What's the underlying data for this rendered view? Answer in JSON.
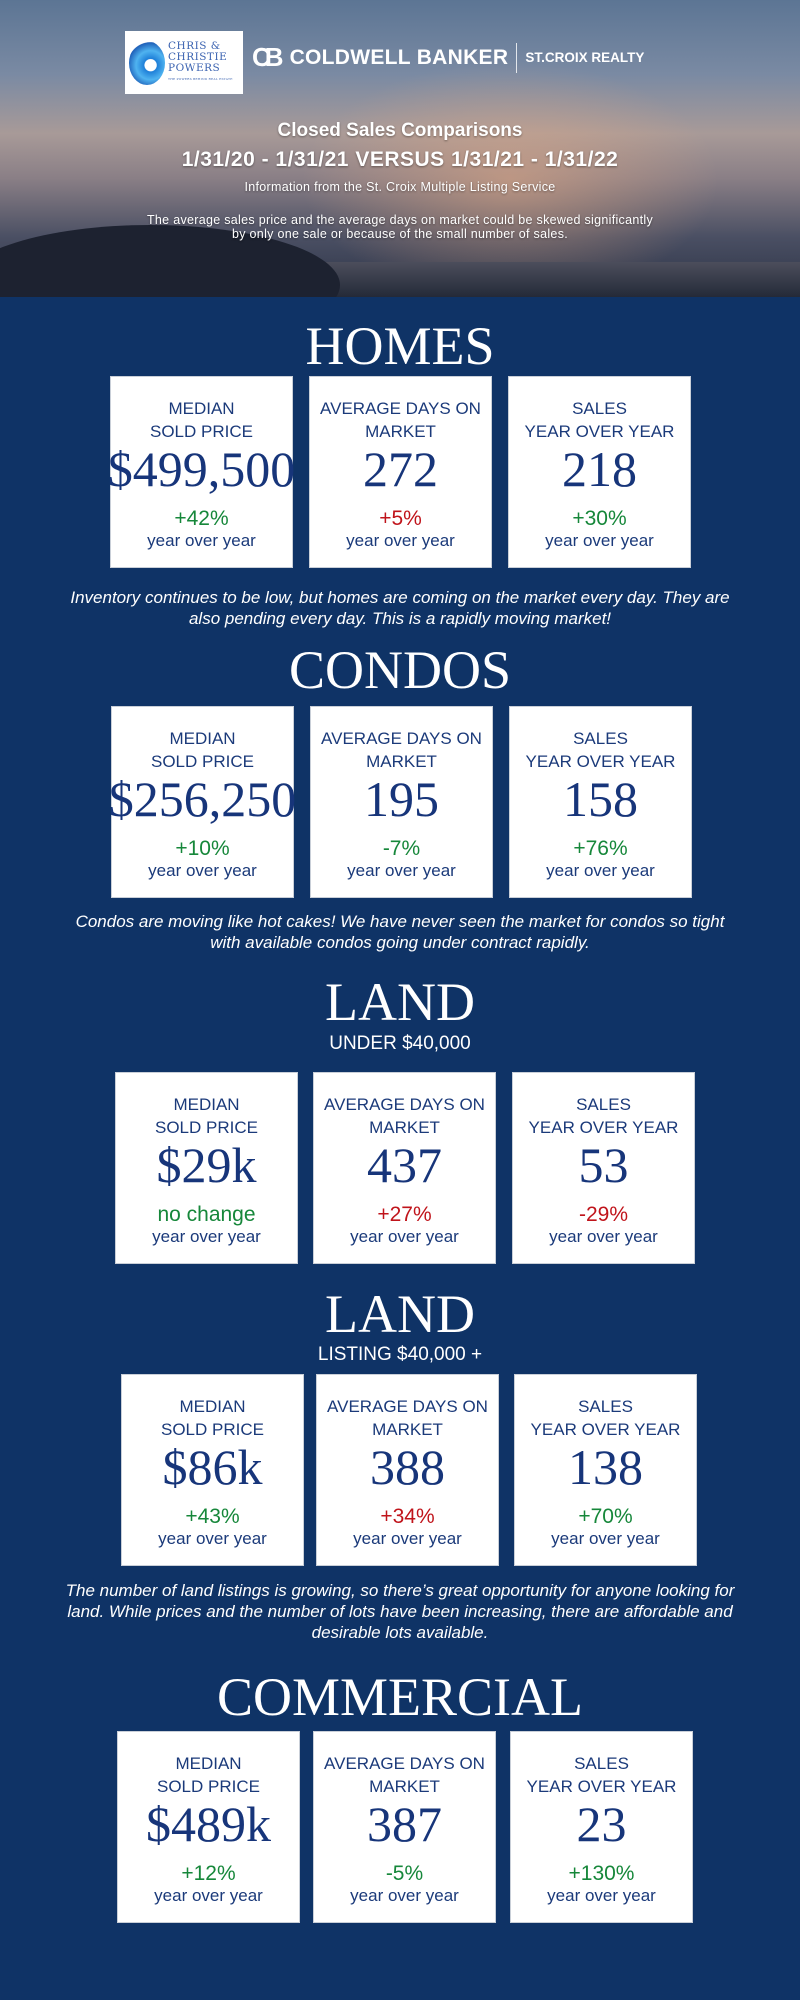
{
  "header": {
    "logo": {
      "line1": "CHRIS &",
      "line2": "CHRISTIE",
      "line3": "POWERS",
      "tagline": "THE POWERS BEHIND REAL ESTATE"
    },
    "brand": {
      "mark": "CB",
      "name": "COLDWELL BANKER",
      "office": "ST.CROIX REALTY"
    },
    "title": "Closed Sales Comparisons",
    "period": "1/31/20 - 1/31/21 VERSUS 1/31/21 - 1/31/22",
    "source": "Information from the St. Croix Multiple Listing Service",
    "disclaimer": "The average sales price and the average days on market could be skewed significantly by only one sale or because of the small number of sales."
  },
  "colors": {
    "background": "#0f3366",
    "positive": "#16873a",
    "negative": "#c0141b",
    "value": "#17357a"
  },
  "sections": [
    {
      "title": "HOMES",
      "subtitle": "",
      "note": "Inventory continues to be low, but homes are coming on the market every day. They are also pending every day. This is a rapidly moving market!",
      "cards": [
        {
          "label": "MEDIAN\nSOLD PRICE",
          "value": "$499,500",
          "change": "+42%",
          "trend": "up",
          "period": "year over year"
        },
        {
          "label": "AVERAGE DAYS ON\nMARKET",
          "value": "272",
          "change": "+5%",
          "trend": "down",
          "period": "year over year"
        },
        {
          "label": "SALES\nYEAR OVER YEAR",
          "value": "218",
          "change": "+30%",
          "trend": "up",
          "period": "year over year"
        }
      ]
    },
    {
      "title": "CONDOS",
      "subtitle": "",
      "note": "Condos are moving like hot cakes! We have never seen the market for condos so tight with available condos going under contract rapidly.",
      "cards": [
        {
          "label": "MEDIAN\nSOLD PRICE",
          "value": "$256,250",
          "change": "+10%",
          "trend": "up",
          "period": "year over year"
        },
        {
          "label": "AVERAGE DAYS ON\nMARKET",
          "value": "195",
          "change": "-7%",
          "trend": "up",
          "period": "year over year"
        },
        {
          "label": "SALES\nYEAR OVER YEAR",
          "value": "158",
          "change": "+76%",
          "trend": "up",
          "period": "year over year"
        }
      ]
    },
    {
      "title": "LAND",
      "subtitle": "UNDER $40,000",
      "note": "",
      "cards": [
        {
          "label": "MEDIAN\nSOLD PRICE",
          "value": "$29k",
          "change": "no change",
          "trend": "up",
          "period": "year over year"
        },
        {
          "label": "AVERAGE DAYS ON\nMARKET",
          "value": "437",
          "change": "+27%",
          "trend": "down",
          "period": "year over year"
        },
        {
          "label": "SALES\nYEAR OVER YEAR",
          "value": "53",
          "change": "-29%",
          "trend": "down",
          "period": "year over year"
        }
      ]
    },
    {
      "title": "LAND",
      "subtitle": "LISTING $40,000 +",
      "note": "The number of land listings is growing, so there’s great opportunity for anyone looking for land. While prices and the number of lots have been increasing, there are affordable and desirable lots available.",
      "cards": [
        {
          "label": "MEDIAN\nSOLD PRICE",
          "value": "$86k",
          "change": "+43%",
          "trend": "up",
          "period": "year over year"
        },
        {
          "label": "AVERAGE DAYS ON\nMARKET",
          "value": "388",
          "change": "+34%",
          "trend": "down",
          "period": "year over year"
        },
        {
          "label": "SALES\nYEAR OVER YEAR",
          "value": "138",
          "change": "+70%",
          "trend": "up",
          "period": "year over year"
        }
      ]
    },
    {
      "title": "COMMERCIAL",
      "subtitle": "",
      "note": "",
      "cards": [
        {
          "label": "MEDIAN\nSOLD PRICE",
          "value": "$489k",
          "change": "+12%",
          "trend": "up",
          "period": "year over year"
        },
        {
          "label": "AVERAGE DAYS ON\nMARKET",
          "value": "387",
          "change": "-5%",
          "trend": "up",
          "period": "year over year"
        },
        {
          "label": "SALES\nYEAR OVER YEAR",
          "value": "23",
          "change": "+130%",
          "trend": "up",
          "period": "year over year"
        }
      ]
    }
  ]
}
